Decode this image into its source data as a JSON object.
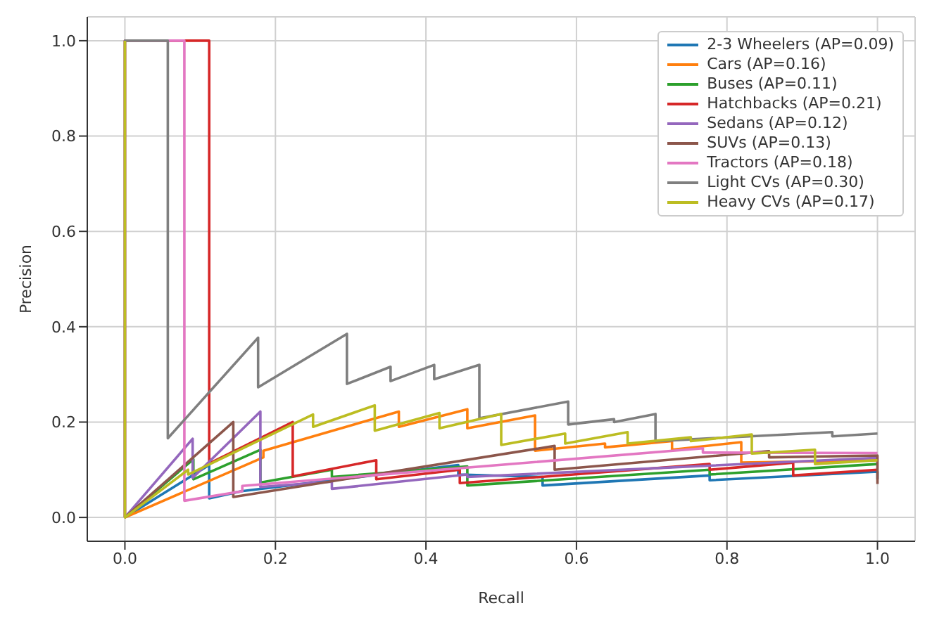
{
  "chart_data": {
    "type": "line",
    "xlabel": "Recall",
    "ylabel": "Precision",
    "xlim": [
      -0.05,
      1.05
    ],
    "ylim": [
      -0.05,
      1.05
    ],
    "xticks": [
      {
        "value": 0,
        "label": "0.0"
      },
      {
        "value": 0.2,
        "label": "0.2"
      },
      {
        "value": 0.4,
        "label": "0.4"
      },
      {
        "value": 0.6,
        "label": "0.6"
      },
      {
        "value": 0.8,
        "label": "0.8"
      },
      {
        "value": 1,
        "label": "1.0"
      }
    ],
    "yticks": [
      {
        "value": 0,
        "label": "0.0"
      },
      {
        "value": 0.2,
        "label": "0.2"
      },
      {
        "value": 0.4,
        "label": "0.4"
      },
      {
        "value": 0.6,
        "label": "0.6"
      },
      {
        "value": 0.8,
        "label": "0.8"
      },
      {
        "value": 1,
        "label": "1.0"
      }
    ],
    "grid": true,
    "legend": "top right",
    "marker": "none",
    "line_style": "solid",
    "series": [
      {
        "name": "2-3 Wheelers (AP=0.09)",
        "color": "#1f77b4",
        "x": [
          0,
          0.112,
          0.112,
          0.155,
          0.443,
          0.443,
          0.555,
          0.555,
          0.777,
          0.777,
          1,
          1
        ],
        "values": [
          0,
          0.11,
          0.04,
          0.055,
          0.11,
          0.09,
          0.085,
          0.067,
          0.088,
          0.078,
          0.096,
          0.08
        ]
      },
      {
        "name": "Cars (AP=0.16)",
        "color": "#ff7f0e",
        "x": [
          0,
          0.184,
          0.184,
          0.364,
          0.364,
          0.455,
          0.455,
          0.545,
          0.545,
          0.638,
          0.638,
          0.727,
          0.727,
          0.819,
          0.819,
          1
        ],
        "values": [
          0,
          0.126,
          0.14,
          0.222,
          0.19,
          0.227,
          0.187,
          0.214,
          0.14,
          0.155,
          0.147,
          0.16,
          0.142,
          0.158,
          0.115,
          0.12
        ]
      },
      {
        "name": "Buses (AP=0.11)",
        "color": "#2ca02c",
        "x": [
          0,
          0.091,
          0.091,
          0.18,
          0.18,
          0.275,
          0.275,
          0.455,
          0.455,
          0.777,
          0.777,
          1
        ],
        "values": [
          0,
          0.122,
          0.08,
          0.142,
          0.073,
          0.1,
          0.085,
          0.107,
          0.067,
          0.1,
          0.09,
          0.112
        ]
      },
      {
        "name": "Hatchbacks (AP=0.21)",
        "color": "#d62728",
        "x": [
          0,
          0,
          0.112,
          0.112,
          0.223,
          0.223,
          0.334,
          0.334,
          0.445,
          0.445,
          0.777,
          0.777,
          0.888,
          0.888,
          1
        ],
        "values": [
          0,
          1,
          1,
          0.113,
          0.2,
          0.086,
          0.12,
          0.08,
          0.1,
          0.072,
          0.112,
          0.1,
          0.115,
          0.088,
          0.1
        ]
      },
      {
        "name": "Sedans (AP=0.12)",
        "color": "#9467bd",
        "x": [
          0,
          0.09,
          0.09,
          0.18,
          0.18,
          0.275,
          0.275,
          0.455,
          0.455,
          1
        ],
        "values": [
          0,
          0.165,
          0.083,
          0.222,
          0.064,
          0.075,
          0.06,
          0.09,
          0.085,
          0.125
        ]
      },
      {
        "name": "SUVs (AP=0.13)",
        "color": "#8c564b",
        "x": [
          0,
          0.144,
          0.144,
          0.571,
          0.571,
          0.856,
          0.856,
          1,
          1
        ],
        "values": [
          0,
          0.2,
          0.043,
          0.15,
          0.1,
          0.139,
          0.126,
          0.13,
          0.07
        ]
      },
      {
        "name": "Tractors (AP=0.18)",
        "color": "#e377c2",
        "x": [
          0,
          0,
          0.079,
          0.079,
          0.156,
          0.156,
          0.768,
          0.768,
          1
        ],
        "values": [
          0,
          1,
          1,
          0.035,
          0.055,
          0.066,
          0.145,
          0.136,
          0.135
        ]
      },
      {
        "name": "Light CVs (AP=0.30)",
        "color": "#7f7f7f",
        "x": [
          0,
          0,
          0.057,
          0.057,
          0.177,
          0.177,
          0.295,
          0.295,
          0.353,
          0.353,
          0.411,
          0.411,
          0.471,
          0.471,
          0.589,
          0.589,
          0.65,
          0.65,
          0.705,
          0.705,
          0.94,
          0.94,
          1
        ],
        "values": [
          0,
          1,
          1,
          0.166,
          0.377,
          0.273,
          0.385,
          0.28,
          0.316,
          0.286,
          0.32,
          0.29,
          0.32,
          0.208,
          0.243,
          0.195,
          0.206,
          0.2,
          0.217,
          0.16,
          0.179,
          0.17,
          0.176
        ]
      },
      {
        "name": "Heavy CVs (AP=0.17)",
        "color": "#bcbd22",
        "x": [
          0,
          0,
          0.084,
          0.084,
          0.25,
          0.25,
          0.332,
          0.332,
          0.418,
          0.418,
          0.5,
          0.5,
          0.585,
          0.585,
          0.668,
          0.668,
          0.752,
          0.752,
          0.833,
          0.833,
          0.917,
          0.917,
          1
        ],
        "values": [
          1,
          0,
          0.1,
          0.09,
          0.216,
          0.19,
          0.235,
          0.182,
          0.219,
          0.187,
          0.217,
          0.152,
          0.176,
          0.155,
          0.179,
          0.155,
          0.168,
          0.16,
          0.174,
          0.134,
          0.142,
          0.112,
          0.12
        ]
      }
    ]
  }
}
